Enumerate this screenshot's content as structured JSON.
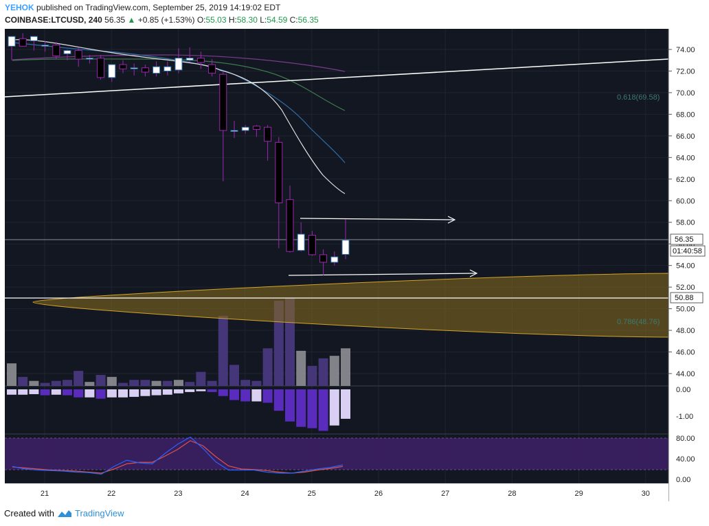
{
  "header": {
    "user": "YEHOK",
    "published_text": "published on TradingView.com, September 25, 2019 14:19:02 EDT",
    "symbol": "COINBASE:LTCUSD, 240",
    "last": "56.35",
    "change_arrow": "▲",
    "change": "+0.85 (+1.53%)",
    "o_label": "O:",
    "o": "55.03",
    "h_label": "H:",
    "h": "58.30",
    "l_label": "L:",
    "l": "54.59",
    "c_label": "C:",
    "c": "56.35"
  },
  "price_tags": {
    "last": "56.35",
    "countdown": "01:40:58",
    "level": "50.88"
  },
  "fib": {
    "f618": "0.618(69.58)",
    "f786": "0.786(48.76)"
  },
  "footer": {
    "created_with": "Created with",
    "brand": "TradingView",
    "logo_icon": "tradingview-logo-icon"
  },
  "colors": {
    "background": "#131722",
    "bull_body": "#ffffff",
    "bear_body": "#000000",
    "candle_border": "#9c27b0",
    "ellipse_fill": "#8a6e1e",
    "ellipse_stroke": "#d4a52a",
    "fib_text": "#3d7a6e",
    "vol_bear": "#4a3a82",
    "vol_bull": "#8f8f95",
    "osc_bear": "#5a2cbd",
    "osc_bull": "#d8cff2",
    "rsi_band": "#3c1f63",
    "stoch_k": "#2962ff",
    "stoch_d": "#e0524a"
  },
  "chart_data": {
    "type": "candlestick",
    "symbol": "COINBASE:LTCUSD",
    "timeframe": "240",
    "x_axis_labels": [
      "21",
      "22",
      "23",
      "24",
      "25",
      "26",
      "27",
      "28",
      "29",
      "30"
    ],
    "y_ticks": [
      "74.00",
      "72.00",
      "70.00",
      "68.00",
      "66.00",
      "64.00",
      "62.00",
      "60.00",
      "58.00",
      "56.00",
      "54.00",
      "52.00",
      "50.00",
      "48.00",
      "46.00",
      "44.00"
    ],
    "ylim": [
      43,
      75.5
    ],
    "candles": [
      {
        "o": 74.3,
        "h": 75.0,
        "l": 73.0,
        "c": 75.2
      },
      {
        "o": 75.0,
        "h": 75.5,
        "l": 74.3,
        "c": 74.3
      },
      {
        "o": 74.8,
        "h": 75.2,
        "l": 73.9,
        "c": 75.2
      },
      {
        "o": 74.3,
        "h": 74.8,
        "l": 73.8,
        "c": 74.4
      },
      {
        "o": 74.4,
        "h": 74.7,
        "l": 73.1,
        "c": 73.4
      },
      {
        "o": 73.6,
        "h": 74.0,
        "l": 73.0,
        "c": 73.9
      },
      {
        "o": 73.9,
        "h": 74.2,
        "l": 72.4,
        "c": 73.1
      },
      {
        "o": 73.1,
        "h": 73.5,
        "l": 72.7,
        "c": 73.2
      },
      {
        "o": 73.2,
        "h": 73.5,
        "l": 71.2,
        "c": 71.4
      },
      {
        "o": 71.4,
        "h": 72.6,
        "l": 71.0,
        "c": 72.6
      },
      {
        "o": 72.6,
        "h": 73.0,
        "l": 71.8,
        "c": 72.2
      },
      {
        "o": 72.3,
        "h": 72.7,
        "l": 71.6,
        "c": 72.3
      },
      {
        "o": 72.3,
        "h": 72.6,
        "l": 71.5,
        "c": 71.9
      },
      {
        "o": 71.8,
        "h": 72.9,
        "l": 71.5,
        "c": 72.4
      },
      {
        "o": 72.0,
        "h": 72.9,
        "l": 71.6,
        "c": 72.4
      },
      {
        "o": 72.1,
        "h": 74.1,
        "l": 71.8,
        "c": 73.2
      },
      {
        "o": 73.0,
        "h": 74.2,
        "l": 72.8,
        "c": 73.2
      },
      {
        "o": 73.2,
        "h": 73.8,
        "l": 72.2,
        "c": 72.8
      },
      {
        "o": 72.6,
        "h": 73.1,
        "l": 71.5,
        "c": 71.8
      },
      {
        "o": 71.7,
        "h": 72.0,
        "l": 61.8,
        "c": 66.5
      },
      {
        "o": 66.5,
        "h": 67.4,
        "l": 65.8,
        "c": 66.5
      },
      {
        "o": 66.5,
        "h": 67.0,
        "l": 66.2,
        "c": 66.8
      },
      {
        "o": 66.9,
        "h": 67.0,
        "l": 65.9,
        "c": 66.6
      },
      {
        "o": 66.8,
        "h": 67.0,
        "l": 63.7,
        "c": 65.5
      },
      {
        "o": 65.4,
        "h": 65.9,
        "l": 55.6,
        "c": 59.8
      },
      {
        "o": 60.1,
        "h": 61.4,
        "l": 55.2,
        "c": 55.3
      },
      {
        "o": 55.4,
        "h": 58.0,
        "l": 55.3,
        "c": 56.9
      },
      {
        "o": 56.8,
        "h": 57.2,
        "l": 54.9,
        "c": 55.0
      },
      {
        "o": 55.0,
        "h": 55.5,
        "l": 53.1,
        "c": 54.3
      },
      {
        "o": 54.3,
        "h": 55.3,
        "l": 54.0,
        "c": 54.8
      },
      {
        "o": 55.03,
        "h": 58.3,
        "l": 54.59,
        "c": 56.35
      }
    ],
    "volume_relative": [
      0.45,
      0.18,
      0.1,
      0.06,
      0.1,
      0.12,
      0.3,
      0.08,
      0.22,
      0.18,
      0.06,
      0.12,
      0.12,
      0.1,
      0.1,
      0.12,
      0.08,
      0.28,
      0.1,
      1.4,
      0.42,
      0.12,
      0.1,
      0.75,
      1.7,
      1.75,
      0.7,
      0.4,
      0.55,
      0.6,
      0.75
    ],
    "volume_bull": [
      true,
      false,
      true,
      false,
      false,
      false,
      false,
      true,
      false,
      true,
      false,
      false,
      false,
      true,
      false,
      true,
      false,
      false,
      false,
      false,
      false,
      false,
      false,
      false,
      false,
      false,
      true,
      false,
      false,
      true,
      true
    ],
    "oscillator": {
      "ticks": [
        "0.00",
        "-1.00"
      ],
      "values": [
        -0.2,
        -0.2,
        -0.18,
        -0.22,
        -0.2,
        -0.22,
        -0.3,
        -0.3,
        -0.35,
        -0.3,
        -0.3,
        -0.28,
        -0.25,
        -0.22,
        -0.2,
        -0.15,
        -0.1,
        -0.07,
        -0.1,
        -0.25,
        -0.4,
        -0.45,
        -0.45,
        -0.5,
        -0.8,
        -1.2,
        -1.4,
        -1.45,
        -1.55,
        -1.35,
        -1.1
      ]
    },
    "stochastic": {
      "ticks": [
        "80.00",
        "40.00",
        "0.00"
      ],
      "k": [
        25,
        20,
        18,
        17,
        16,
        14,
        13,
        10,
        25,
        37,
        32,
        30,
        50,
        68,
        82,
        60,
        34,
        18,
        18,
        18,
        14,
        12,
        12,
        16,
        20,
        23,
        28
      ],
      "d": [
        24,
        22,
        20,
        18,
        17,
        16,
        14,
        12,
        20,
        30,
        33,
        33,
        45,
        58,
        75,
        65,
        44,
        26,
        20,
        19,
        17,
        14,
        12,
        14,
        18,
        21,
        25
      ]
    },
    "annotations": [
      {
        "type": "trendline",
        "from": [
          20.5,
          69.8
        ],
        "to": [
          30.4,
          73.1
        ]
      },
      {
        "type": "arrow",
        "at_price": 58.2,
        "from_day": 24.8,
        "to_day": 27.1
      },
      {
        "type": "arrow",
        "at_price": 53.0,
        "from_day": 24.7,
        "to_day": 27.4
      },
      {
        "type": "horizontal",
        "price": 56.35
      },
      {
        "type": "horizontal",
        "price": 50.88
      },
      {
        "type": "zone",
        "label": "ellipse",
        "top_left": [
          20.8,
          50.6
        ],
        "right_top": 53.2,
        "right_bottom": 47.2
      }
    ]
  }
}
